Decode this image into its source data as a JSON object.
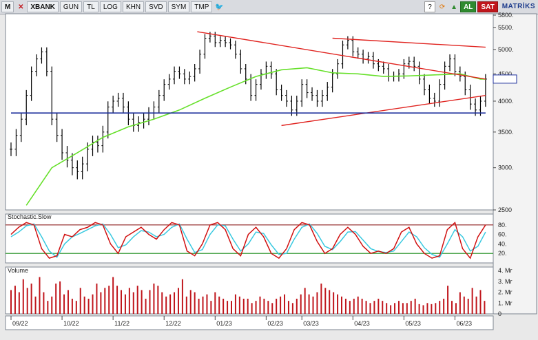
{
  "toolbar": {
    "logo": "M",
    "symbol": "XBANK",
    "buttons": [
      "GUN",
      "TL",
      "LOG",
      "KHN",
      "SVD",
      "SYM",
      "TMP"
    ],
    "buy_label": "AL",
    "sell_label": "SAT",
    "brand": "MATRİKS",
    "icons": [
      "close-icon",
      "twitter-icon",
      "help-icon",
      "refresh-icon",
      "chart-icon"
    ]
  },
  "chart_data": [
    {
      "type": "line",
      "panel": "price",
      "series": [
        {
          "role": "price-bars",
          "x_months": [
            0,
            0.1,
            0.2,
            0.3,
            0.4,
            0.5,
            0.6,
            0.7,
            0.8,
            0.9,
            1,
            1.1,
            1.2,
            1.3,
            1.4,
            1.5,
            1.6,
            1.7,
            1.8,
            1.9,
            2,
            2.1,
            2.2,
            2.3,
            2.4,
            2.5,
            2.6,
            2.7,
            2.8,
            2.9,
            3,
            3.1,
            3.2,
            3.3,
            3.4,
            3.5,
            3.6,
            3.7,
            3.8,
            3.9,
            4,
            4.1,
            4.2,
            4.3,
            4.4,
            4.5,
            4.6,
            4.7,
            4.8,
            4.9,
            5,
            5.1,
            5.2,
            5.3,
            5.4,
            5.5,
            5.6,
            5.7,
            5.8,
            5.9,
            6,
            6.1,
            6.2,
            6.3,
            6.4,
            6.5,
            6.6,
            6.7,
            6.8,
            6.9,
            7,
            7.1,
            7.2,
            7.3,
            7.4,
            7.5,
            7.6,
            7.7,
            7.8,
            7.9,
            8,
            8.1,
            8.2,
            8.3,
            8.4,
            8.5,
            8.6,
            8.7,
            8.8,
            8.9,
            9,
            9.1,
            9.2,
            9.3
          ],
          "close": [
            3250,
            3450,
            3700,
            4100,
            4550,
            4800,
            4950,
            4550,
            3700,
            3450,
            3200,
            3100,
            3000,
            2950,
            3050,
            3250,
            3350,
            3300,
            3500,
            3900,
            4000,
            4050,
            3900,
            3700,
            3600,
            3650,
            3700,
            3800,
            3900,
            4100,
            4300,
            4400,
            4550,
            4500,
            4400,
            4450,
            4600,
            4900,
            5250,
            5300,
            5150,
            5200,
            5150,
            5100,
            4900,
            4600,
            4400,
            4100,
            4300,
            4500,
            4650,
            4500,
            4200,
            4100,
            4000,
            3850,
            4000,
            4300,
            4150,
            4100,
            4000,
            4100,
            4250,
            4500,
            4700,
            5100,
            5200,
            4950,
            4900,
            4800,
            4850,
            4700,
            4650,
            4600,
            4450,
            4450,
            4500,
            4700,
            4750,
            4650,
            4400,
            4200,
            4050,
            4000,
            4300,
            4650,
            4800,
            4550,
            4450,
            4200,
            3950,
            3850,
            4000,
            4400
          ],
          "spread": 160
        },
        {
          "name": "",
          "role": "moving-average",
          "x_months": [
            0.3,
            0.8,
            1.3,
            1.8,
            2.3,
            2.8,
            3.3,
            3.8,
            4.3,
            4.8,
            5.3,
            5.8,
            6.3,
            6.8,
            7.3,
            7.8,
            8.3,
            8.8,
            9.2,
            9.3
          ],
          "values": [
            2550,
            3000,
            3200,
            3420,
            3580,
            3700,
            3850,
            4050,
            4250,
            4450,
            4580,
            4620,
            4520,
            4500,
            4450,
            4460,
            4480,
            4500,
            4400,
            4400
          ]
        }
      ],
      "trendlines": [
        {
          "role": "upper-resistance",
          "x_months": [
            3.65,
            9.3
          ],
          "values": [
            5400,
            4400
          ]
        },
        {
          "role": "outer-upper-line",
          "x_months": [
            6.3,
            9.3
          ],
          "values": [
            5250,
            5050
          ]
        },
        {
          "role": "lower-support",
          "x_months": [
            5.3,
            9.3
          ],
          "values": [
            3600,
            4100
          ]
        },
        {
          "role": "horizontal-support",
          "x_months": [
            0,
            9.3
          ],
          "values": [
            3800,
            3800
          ]
        }
      ],
      "ylim": [
        2500,
        5800
      ],
      "y_scale": "log",
      "yticks": [
        2500,
        3000,
        3500,
        4000,
        4500,
        5000,
        5500,
        5800
      ],
      "ytick_labels": [
        "2500",
        "3000.",
        "3500.",
        "4000.",
        "4500.",
        "5000.",
        "5500.",
        "5800."
      ],
      "last_value_label": "",
      "colors": {
        "price": "#000000",
        "moving_average": "#66e02a",
        "trendline": "#e0231f",
        "support": "#1c2f9c"
      }
    },
    {
      "type": "line",
      "panel": "stochastic",
      "title": "Stochastic.Slow",
      "ylim": [
        0,
        100
      ],
      "yticks": [
        20,
        40,
        60,
        80
      ],
      "ytick_labels": [
        "20.",
        "40.",
        "60.",
        "80."
      ],
      "levels": [
        80,
        20
      ],
      "series": [
        {
          "role": "k",
          "color": "#d01010",
          "x_months": [
            0,
            0.15,
            0.3,
            0.45,
            0.6,
            0.75,
            0.9,
            1.05,
            1.2,
            1.35,
            1.5,
            1.65,
            1.8,
            1.95,
            2.1,
            2.25,
            2.4,
            2.55,
            2.7,
            2.85,
            3,
            3.15,
            3.3,
            3.45,
            3.6,
            3.75,
            3.9,
            4.05,
            4.2,
            4.35,
            4.5,
            4.65,
            4.8,
            4.95,
            5.1,
            5.25,
            5.4,
            5.55,
            5.7,
            5.85,
            6,
            6.15,
            6.3,
            6.45,
            6.6,
            6.75,
            6.9,
            7.05,
            7.2,
            7.35,
            7.5,
            7.65,
            7.8,
            7.95,
            8.1,
            8.25,
            8.4,
            8.55,
            8.7,
            8.85,
            9,
            9.15,
            9.3
          ],
          "values": [
            60,
            75,
            85,
            80,
            30,
            10,
            15,
            60,
            55,
            70,
            75,
            85,
            80,
            40,
            20,
            55,
            65,
            75,
            60,
            50,
            70,
            85,
            80,
            25,
            15,
            40,
            80,
            85,
            70,
            30,
            15,
            60,
            75,
            55,
            20,
            10,
            30,
            70,
            85,
            80,
            45,
            20,
            30,
            60,
            75,
            60,
            35,
            20,
            25,
            20,
            30,
            65,
            75,
            40,
            20,
            10,
            15,
            70,
            85,
            30,
            10,
            55,
            80
          ],
          "annotations": []
        },
        {
          "role": "d",
          "color": "#39c9e0",
          "x_months": [
            0,
            0.15,
            0.3,
            0.45,
            0.6,
            0.75,
            0.9,
            1.05,
            1.2,
            1.35,
            1.5,
            1.65,
            1.8,
            1.95,
            2.1,
            2.25,
            2.4,
            2.55,
            2.7,
            2.85,
            3,
            3.15,
            3.3,
            3.45,
            3.6,
            3.75,
            3.9,
            4.05,
            4.2,
            4.35,
            4.5,
            4.65,
            4.8,
            4.95,
            5.1,
            5.25,
            5.4,
            5.55,
            5.7,
            5.85,
            6,
            6.15,
            6.3,
            6.45,
            6.6,
            6.75,
            6.9,
            7.05,
            7.2,
            7.35,
            7.5,
            7.65,
            7.8,
            7.95,
            8.1,
            8.25,
            8.4,
            8.55,
            8.7,
            8.85,
            9,
            9.15,
            9.3
          ],
          "values": [
            55,
            65,
            78,
            82,
            55,
            25,
            12,
            40,
            55,
            62,
            70,
            78,
            82,
            60,
            32,
            38,
            55,
            68,
            65,
            55,
            60,
            75,
            82,
            50,
            22,
            28,
            60,
            80,
            78,
            50,
            25,
            40,
            65,
            62,
            38,
            18,
            20,
            50,
            75,
            82,
            62,
            35,
            28,
            45,
            65,
            66,
            48,
            30,
            24,
            22,
            25,
            45,
            65,
            55,
            32,
            18,
            12,
            40,
            70,
            55,
            25,
            35,
            65
          ]
        }
      ],
      "colors": {
        "upper_level": "#8b1a1a",
        "lower_level": "#1a8b1a"
      }
    },
    {
      "type": "bar",
      "panel": "volume",
      "title": "Volume",
      "ylim": [
        0,
        4.2
      ],
      "yticks": [
        0,
        1,
        2,
        3,
        4
      ],
      "ytick_labels": [
        "0",
        "1. Mr",
        "2. Mr",
        "3. Mr",
        "4. Mr"
      ],
      "x_months": [
        0,
        0.08,
        0.16,
        0.24,
        0.32,
        0.4,
        0.48,
        0.56,
        0.64,
        0.72,
        0.8,
        0.88,
        0.96,
        1.04,
        1.12,
        1.2,
        1.28,
        1.36,
        1.44,
        1.52,
        1.6,
        1.68,
        1.76,
        1.84,
        1.92,
        2,
        2.08,
        2.16,
        2.24,
        2.32,
        2.4,
        2.48,
        2.56,
        2.64,
        2.72,
        2.8,
        2.88,
        2.96,
        3.04,
        3.12,
        3.2,
        3.28,
        3.36,
        3.44,
        3.52,
        3.6,
        3.68,
        3.76,
        3.84,
        3.92,
        4,
        4.08,
        4.16,
        4.24,
        4.32,
        4.4,
        4.48,
        4.56,
        4.64,
        4.72,
        4.8,
        4.88,
        4.96,
        5.04,
        5.12,
        5.2,
        5.28,
        5.36,
        5.44,
        5.52,
        5.6,
        5.68,
        5.76,
        5.84,
        5.92,
        6,
        6.08,
        6.16,
        6.24,
        6.32,
        6.4,
        6.48,
        6.56,
        6.64,
        6.72,
        6.8,
        6.88,
        6.96,
        7.04,
        7.12,
        7.2,
        7.28,
        7.36,
        7.44,
        7.52,
        7.6,
        7.68,
        7.76,
        7.84,
        7.92,
        8,
        8.08,
        8.16,
        8.24,
        8.32,
        8.4,
        8.48,
        8.56,
        8.64,
        8.72,
        8.8,
        8.88,
        8.96,
        9.04,
        9.12,
        9.2,
        9.28
      ],
      "values": [
        2.2,
        2.6,
        2.0,
        3.2,
        2.4,
        2.8,
        1.6,
        3.4,
        2.0,
        1.2,
        1.6,
        2.8,
        3.0,
        1.8,
        2.2,
        1.4,
        1.2,
        2.4,
        1.6,
        1.4,
        1.8,
        2.8,
        2.0,
        2.4,
        2.6,
        3.4,
        2.6,
        2.2,
        1.8,
        2.4,
        2.0,
        2.6,
        2.2,
        1.4,
        2.2,
        2.8,
        2.6,
        2.0,
        1.6,
        1.8,
        2.0,
        2.4,
        3.2,
        1.6,
        2.2,
        2.0,
        1.4,
        1.6,
        1.8,
        1.2,
        2.0,
        1.6,
        1.4,
        1.2,
        1.2,
        1.8,
        1.6,
        1.4,
        1.4,
        1.0,
        1.2,
        1.6,
        1.4,
        1.2,
        1.0,
        1.4,
        1.6,
        1.8,
        1.2,
        1.0,
        1.4,
        1.8,
        2.4,
        1.8,
        1.6,
        2.0,
        2.8,
        2.4,
        2.2,
        2.0,
        1.8,
        1.6,
        1.4,
        1.2,
        1.4,
        1.6,
        1.4,
        1.2,
        1.0,
        1.2,
        1.4,
        1.2,
        1.0,
        0.8,
        1.0,
        1.2,
        1.0,
        1.0,
        1.2,
        1.4,
        0.9,
        0.8,
        1.0,
        0.9,
        1.0,
        1.2,
        1.4,
        2.6,
        1.2,
        1.0,
        2.0,
        1.6,
        1.4,
        2.4,
        1.6,
        2.2,
        1.2
      ],
      "color": "#c0161c"
    }
  ],
  "x_axis": {
    "labels": [
      "09/22",
      "10/22",
      "11/22",
      "12/22",
      "01/23",
      "02/23",
      "03/23",
      "04/23",
      "05/23",
      "06/23"
    ],
    "label_positions_months": [
      0,
      1,
      2,
      3,
      4,
      5,
      5.7,
      6.7,
      7.7,
      8.7
    ]
  }
}
